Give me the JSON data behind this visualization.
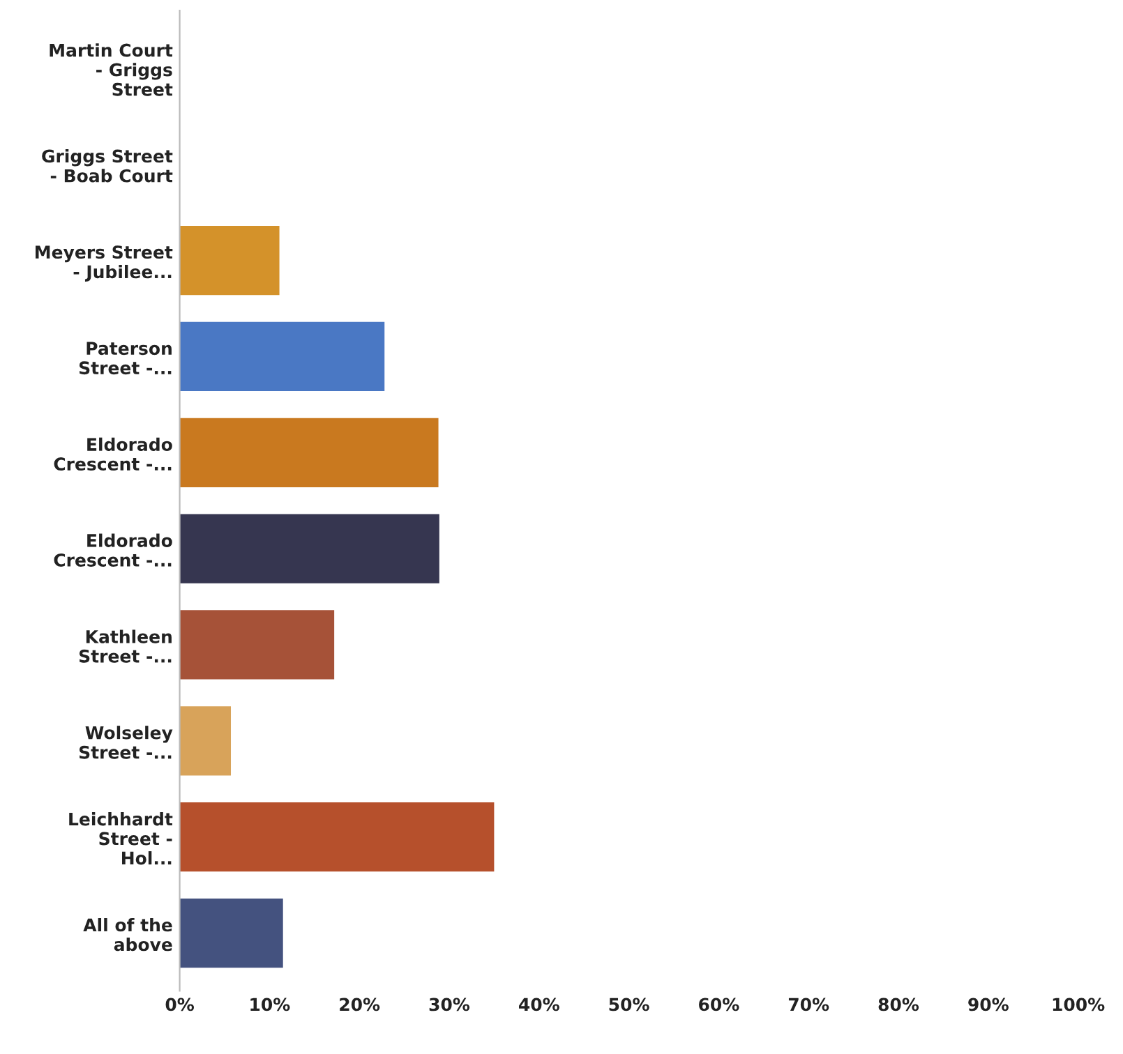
{
  "chart_data": {
    "type": "bar",
    "orientation": "horizontal",
    "categories": [
      "Martin Court - Griggs Street",
      "Griggs Street - Boab Court",
      "Meyers Street - Jubilee...",
      "Paterson Street -...",
      "Eldorado Crescent -...",
      "Eldorado Crescent -...",
      "Kathleen Street -...",
      "Wolseley Street -...",
      "Leichhardt Street - Hol...",
      "All of the above"
    ],
    "values": [
      0,
      0,
      11.1,
      22.8,
      28.8,
      28.9,
      17.2,
      5.7,
      35.0,
      11.5
    ],
    "colors": [
      "#d89a2a",
      "#d89a2a",
      "#d4922a",
      "#4a78c4",
      "#c9791f",
      "#363650",
      "#a65238",
      "#d8a35a",
      "#b6502c",
      "#44527f"
    ],
    "xlim": [
      0,
      100
    ],
    "xticks": [
      {
        "value": 0,
        "label": "0%"
      },
      {
        "value": 10,
        "label": "10%"
      },
      {
        "value": 20,
        "label": "20%"
      },
      {
        "value": 30,
        "label": "30%"
      },
      {
        "value": 40,
        "label": "40%"
      },
      {
        "value": 50,
        "label": "50%"
      },
      {
        "value": 60,
        "label": "60%"
      },
      {
        "value": 70,
        "label": "70%"
      },
      {
        "value": 80,
        "label": "80%"
      },
      {
        "value": 90,
        "label": "90%"
      },
      {
        "value": 100,
        "label": "100%"
      }
    ],
    "grid": false,
    "legend": false
  }
}
